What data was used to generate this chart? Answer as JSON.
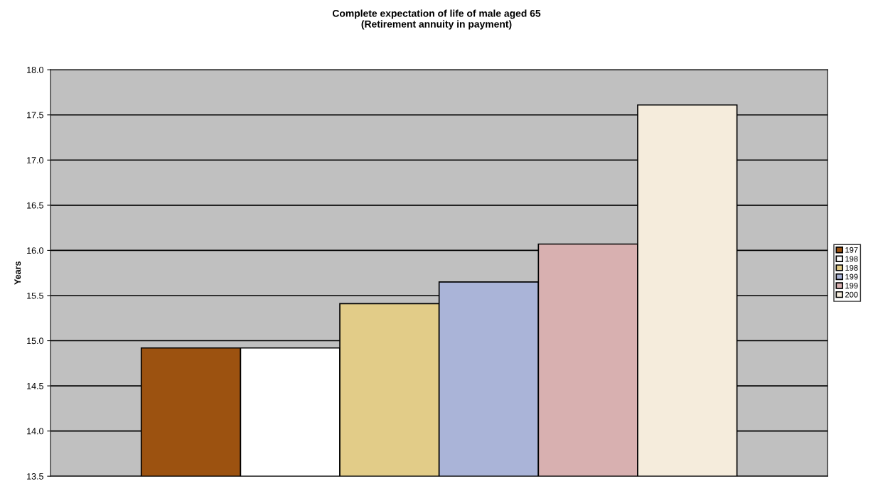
{
  "chart_data": {
    "type": "bar",
    "title": "Complete expectation of life of male aged 65\n(Retirement annuity in payment)",
    "ylabel": "Years",
    "categories": [
      null
    ],
    "series": [
      {
        "name": "197",
        "color": "#9c5210",
        "values": [
          14.92
        ]
      },
      {
        "name": "198",
        "color": "#ffffff",
        "values": [
          14.92
        ]
      },
      {
        "name": "198",
        "color": "#e2cc88",
        "values": [
          15.41
        ]
      },
      {
        "name": "199",
        "color": "#aab4d8",
        "values": [
          15.65
        ]
      },
      {
        "name": "199",
        "color": "#d8b0b0",
        "values": [
          16.07
        ]
      },
      {
        "name": "200",
        "color": "#f5ecdc",
        "values": [
          17.61
        ]
      }
    ],
    "ylim": [
      13.5,
      18.0
    ],
    "yticks": [
      {
        "value": 13.5,
        "label": "13.5"
      },
      {
        "value": 14,
        "label": "14.0"
      },
      {
        "value": 14.5,
        "label": "14.5"
      },
      {
        "value": 15,
        "label": "15.0"
      },
      {
        "value": 15.5,
        "label": "15.5"
      },
      {
        "value": 16,
        "label": "16.0"
      },
      {
        "value": 16.5,
        "label": "16.5"
      },
      {
        "value": 17,
        "label": "17.0"
      },
      {
        "value": 17.5,
        "label": "17.5"
      },
      {
        "value": 18,
        "label": "18.0"
      }
    ],
    "grid": "y",
    "legend": "right"
  }
}
